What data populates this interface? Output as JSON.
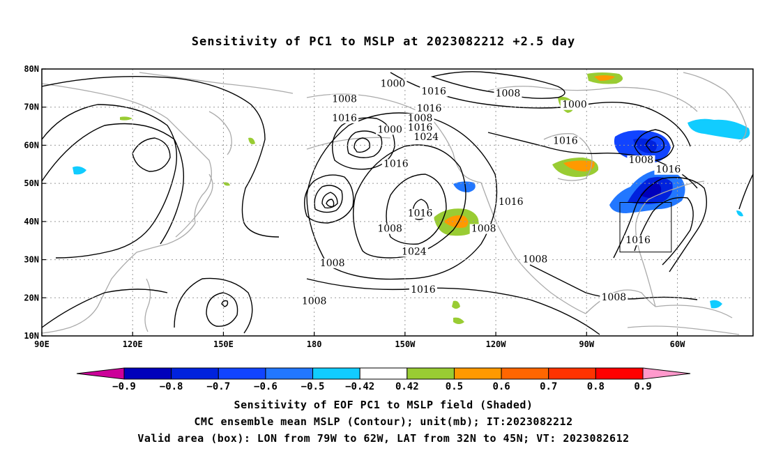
{
  "title": "Sensitivity of PC1 to MSLP at 2023082212 +2.5 day",
  "map": {
    "lat_labels": [
      "80N",
      "70N",
      "60N",
      "50N",
      "40N",
      "30N",
      "20N",
      "10N"
    ],
    "lon_labels": [
      "90E",
      "120E",
      "150E",
      "180",
      "150W",
      "120W",
      "90W",
      "60W"
    ],
    "contour_labels": [
      {
        "text": "1016",
        "lon": -140.5,
        "lat": 73.5
      },
      {
        "text": "1016",
        "lon": -142,
        "lat": 69
      },
      {
        "text": "1008",
        "lon": -170,
        "lat": 71.5
      },
      {
        "text": "1016",
        "lon": -170,
        "lat": 66.5
      },
      {
        "text": "1016",
        "lon": -153,
        "lat": 54.5
      },
      {
        "text": "1016",
        "lon": -145,
        "lat": 41.5
      },
      {
        "text": "1008",
        "lon": -155,
        "lat": 37.5
      },
      {
        "text": "1008",
        "lon": -174,
        "lat": 28.5
      },
      {
        "text": "1008",
        "lon": -180,
        "lat": 18.5
      },
      {
        "text": "1008",
        "lon": -145,
        "lat": 66.5
      },
      {
        "text": "1000",
        "lon": -155,
        "lat": 63.5
      },
      {
        "text": "1016",
        "lon": -145,
        "lat": 64
      },
      {
        "text": "1024",
        "lon": -143,
        "lat": 61.5
      },
      {
        "text": "1008",
        "lon": -124,
        "lat": 37.5
      },
      {
        "text": "1024",
        "lon": -147,
        "lat": 31.5
      },
      {
        "text": "1016",
        "lon": -144,
        "lat": 21.5
      },
      {
        "text": "1000",
        "lon": -154,
        "lat": 75.5
      },
      {
        "text": "1008",
        "lon": -116,
        "lat": 73
      },
      {
        "text": "1000",
        "lon": -94,
        "lat": 70
      },
      {
        "text": "1016",
        "lon": -97,
        "lat": 60.5
      },
      {
        "text": "1016",
        "lon": -115,
        "lat": 44.5
      },
      {
        "text": "1008",
        "lon": -72,
        "lat": 55.5
      },
      {
        "text": "1016",
        "lon": -63,
        "lat": 53
      },
      {
        "text": "1016",
        "lon": -73,
        "lat": 34.5
      },
      {
        "text": "1008",
        "lon": -107,
        "lat": 29.5
      },
      {
        "text": "1008",
        "lon": -81,
        "lat": 19.5
      }
    ]
  },
  "colorbar": {
    "colors": [
      "#cc0099",
      "#0000bb",
      "#0022dd",
      "#1144ff",
      "#2277ff",
      "#11ccff",
      "#ffffff",
      "#99cc33",
      "#ff9900",
      "#ff6600",
      "#ff3300",
      "#ff0000",
      "#ff99cc"
    ],
    "labels": [
      "−0.9",
      "−0.8",
      "−0.7",
      "−0.6",
      "−0.5",
      "−0.42",
      "0.42",
      "0.5",
      "0.6",
      "0.7",
      "0.8",
      "0.9"
    ]
  },
  "footer": {
    "line1": "Sensitivity of EOF PC1 to MSLP field (Shaded)",
    "line2": "CMC ensemble mean MSLP (Contour); unit(mb); IT:2023082212",
    "line3": "Valid area (box): LON from 79W to 62W, LAT from 32N to 45N; VT: 2023082612"
  },
  "valid_box": {
    "lon_w": -79,
    "lon_e": -62,
    "lat_s": 32,
    "lat_n": 45
  }
}
